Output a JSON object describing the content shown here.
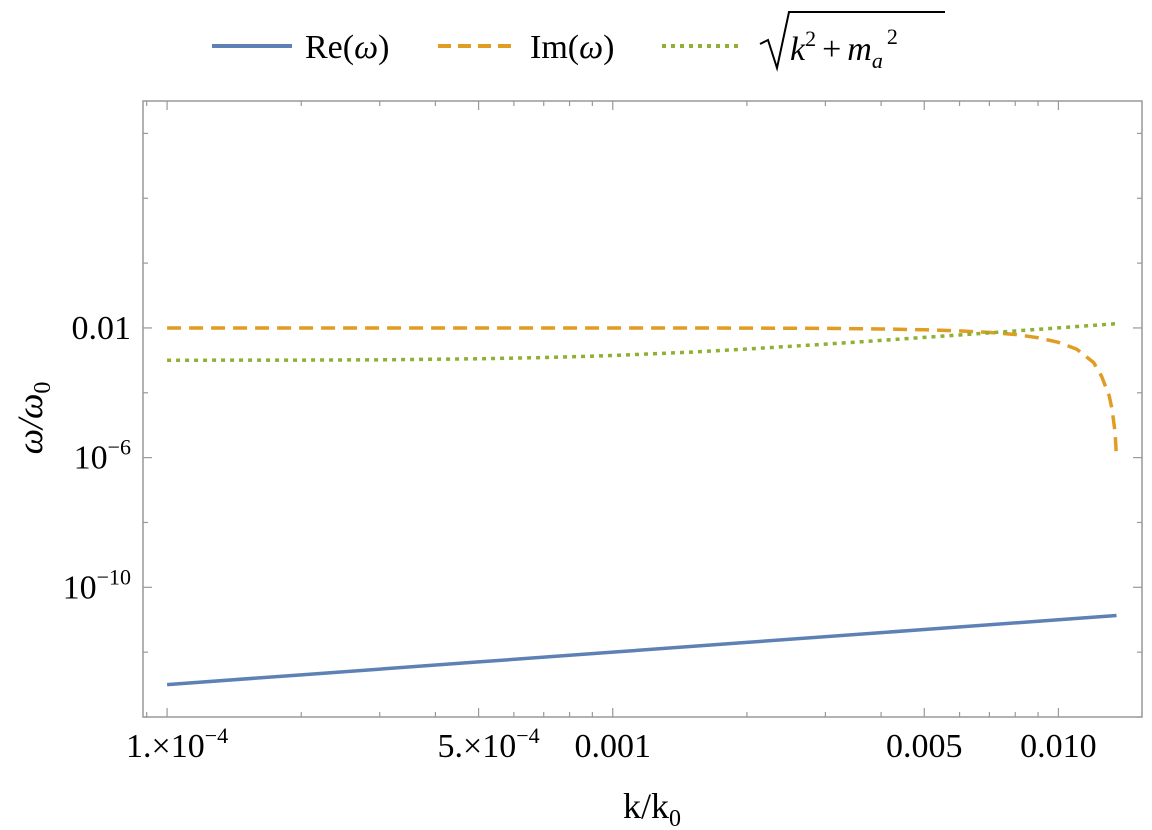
{
  "chart_data": {
    "type": "line",
    "xlabel": "k/k",
    "xlabel_sub": "0",
    "ylabel": "ω/ω",
    "ylabel_sub": "0",
    "x_scale": "log",
    "y_scale": "log",
    "xlim": [
      8.83e-05,
      0.0154
    ],
    "ylim": [
      1e-14,
      100000.0
    ],
    "x_ticks": [
      {
        "value": 0.0001,
        "mant": "1.×10",
        "exp": "−4"
      },
      {
        "value": 0.0005,
        "mant": "5.×10",
        "exp": "−4"
      },
      {
        "value": 0.001,
        "mant": "0.001",
        "exp": ""
      },
      {
        "value": 0.005,
        "mant": "0.005",
        "exp": ""
      },
      {
        "value": 0.01,
        "mant": "0.010",
        "exp": ""
      }
    ],
    "y_ticks": [
      {
        "value": 0.01,
        "mant": "0.01",
        "exp": ""
      },
      {
        "value": 1e-06,
        "mant": "10",
        "exp": "−6"
      },
      {
        "value": 1e-10,
        "mant": "10",
        "exp": "−10"
      }
    ],
    "legend_position": "top",
    "grid": false,
    "series": [
      {
        "name": "Re(ω)",
        "color": "#5e81b5",
        "style": "solid",
        "x": [
          0.0001,
          0.0002,
          0.0005,
          0.001,
          0.002,
          0.005,
          0.01,
          0.0135
        ],
        "y": [
          1e-13,
          2e-13,
          5e-13,
          1e-12,
          2e-12,
          5e-12,
          1e-11,
          1.35e-11
        ]
      },
      {
        "name": "Im(ω)",
        "color": "#e19c24",
        "style": "dashed",
        "x": [
          0.0001,
          0.0005,
          0.001,
          0.002,
          0.003,
          0.004,
          0.005,
          0.006,
          0.007,
          0.008,
          0.009,
          0.01,
          0.011,
          0.012,
          0.0125,
          0.013,
          0.0132,
          0.0134,
          0.0135
        ],
        "y": [
          0.01,
          0.01,
          0.01,
          0.0099,
          0.0097,
          0.0093,
          0.0088,
          0.0081,
          0.0073,
          0.0063,
          0.005,
          0.0036,
          0.0022,
          0.00085,
          0.00032,
          8e-05,
          3e-05,
          6e-06,
          1e-06
        ]
      },
      {
        "name": "√(k² + m_a²)",
        "color": "#8fb032",
        "style": "dotted",
        "x": [
          0.0001,
          0.0002,
          0.0003,
          0.0005,
          0.0007,
          0.001,
          0.0015,
          0.002,
          0.003,
          0.004,
          0.005,
          0.006,
          0.007,
          0.008,
          0.009,
          0.01,
          0.012,
          0.0135
        ],
        "y": [
          0.00101,
          0.00102,
          0.00104,
          0.00112,
          0.00122,
          0.00141,
          0.0018,
          0.00224,
          0.00316,
          0.00412,
          0.0051,
          0.00608,
          0.00707,
          0.00806,
          0.00906,
          0.01005,
          0.01204,
          0.01354
        ]
      }
    ]
  },
  "legend": {
    "items": [
      {
        "label_main": "Re(",
        "label_sym": "ω",
        "label_end": ")"
      },
      {
        "label_main": "Im(",
        "label_sym": "ω",
        "label_end": ")"
      },
      {
        "label_k": "k",
        "label_plus": "+",
        "label_m": "m",
        "label_a": "a",
        "exp1": "2",
        "exp2": "2"
      }
    ]
  }
}
